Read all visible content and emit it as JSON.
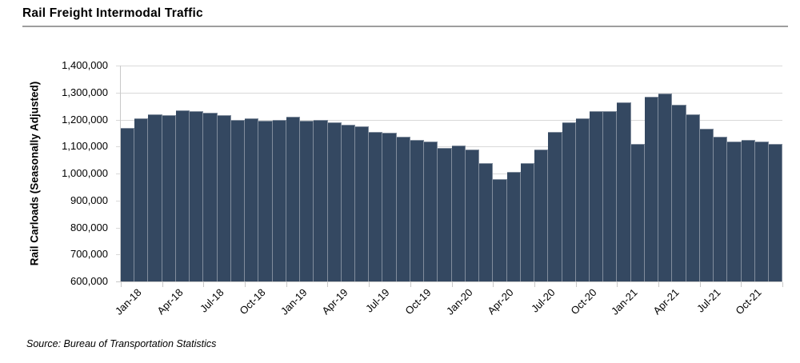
{
  "page": {
    "title": "Rail Freight Intermodal Traffic",
    "source": "Source: Bureau of Transportation Statistics"
  },
  "chart_data": {
    "type": "bar",
    "title": "Rail Freight Intermodal Traffic",
    "xlabel": "",
    "ylabel": "Rail Carloads (Seasonally Adjusted)",
    "ylim": [
      600000,
      1400000
    ],
    "ytick_step": 100000,
    "ytick_labels": [
      "1,400,000",
      "1,300,000",
      "1,200,000",
      "1,100,000",
      "1,000,000",
      "900,000",
      "800,000",
      "700,000",
      "600,000"
    ],
    "grid": true,
    "legend": false,
    "bar_color": "#344861",
    "gridline_color": "#d9d9d9",
    "axis_color": "#c9c9c9",
    "x_tick_labels": [
      "Jan-18",
      "Apr-18",
      "Jul-18",
      "Oct-18",
      "Jan-19",
      "Apr-19",
      "Jul-19",
      "Oct-19",
      "Jan-20",
      "Apr-20",
      "Jul-20",
      "Oct-20",
      "Jan-21",
      "Apr-21",
      "Jul-21",
      "Oct-21"
    ],
    "categories": [
      "Jan-18",
      "Feb-18",
      "Mar-18",
      "Apr-18",
      "May-18",
      "Jun-18",
      "Jul-18",
      "Aug-18",
      "Sep-18",
      "Oct-18",
      "Nov-18",
      "Dec-18",
      "Jan-19",
      "Feb-19",
      "Mar-19",
      "Apr-19",
      "May-19",
      "Jun-19",
      "Jul-19",
      "Aug-19",
      "Sep-19",
      "Oct-19",
      "Nov-19",
      "Dec-19",
      "Jan-20",
      "Feb-20",
      "Mar-20",
      "Apr-20",
      "May-20",
      "Jun-20",
      "Jul-20",
      "Aug-20",
      "Sep-20",
      "Oct-20",
      "Nov-20",
      "Dec-20",
      "Jan-21",
      "Feb-21",
      "Mar-21",
      "Apr-21",
      "May-21",
      "Jun-21",
      "Jul-21",
      "Aug-21",
      "Sep-21",
      "Oct-21",
      "Nov-21",
      "Dec-21"
    ],
    "values": [
      1170000,
      1205000,
      1220000,
      1215000,
      1235000,
      1230000,
      1225000,
      1215000,
      1200000,
      1205000,
      1195000,
      1200000,
      1210000,
      1195000,
      1200000,
      1190000,
      1180000,
      1175000,
      1155000,
      1150000,
      1135000,
      1125000,
      1120000,
      1095000,
      1105000,
      1090000,
      1040000,
      980000,
      1005000,
      1040000,
      1090000,
      1155000,
      1190000,
      1205000,
      1230000,
      1230000,
      1265000,
      1110000,
      1285000,
      1295000,
      1255000,
      1220000,
      1165000,
      1135000,
      1120000,
      1125000,
      1120000,
      1110000
    ],
    "source": "Source: Bureau of Transportation Statistics"
  }
}
